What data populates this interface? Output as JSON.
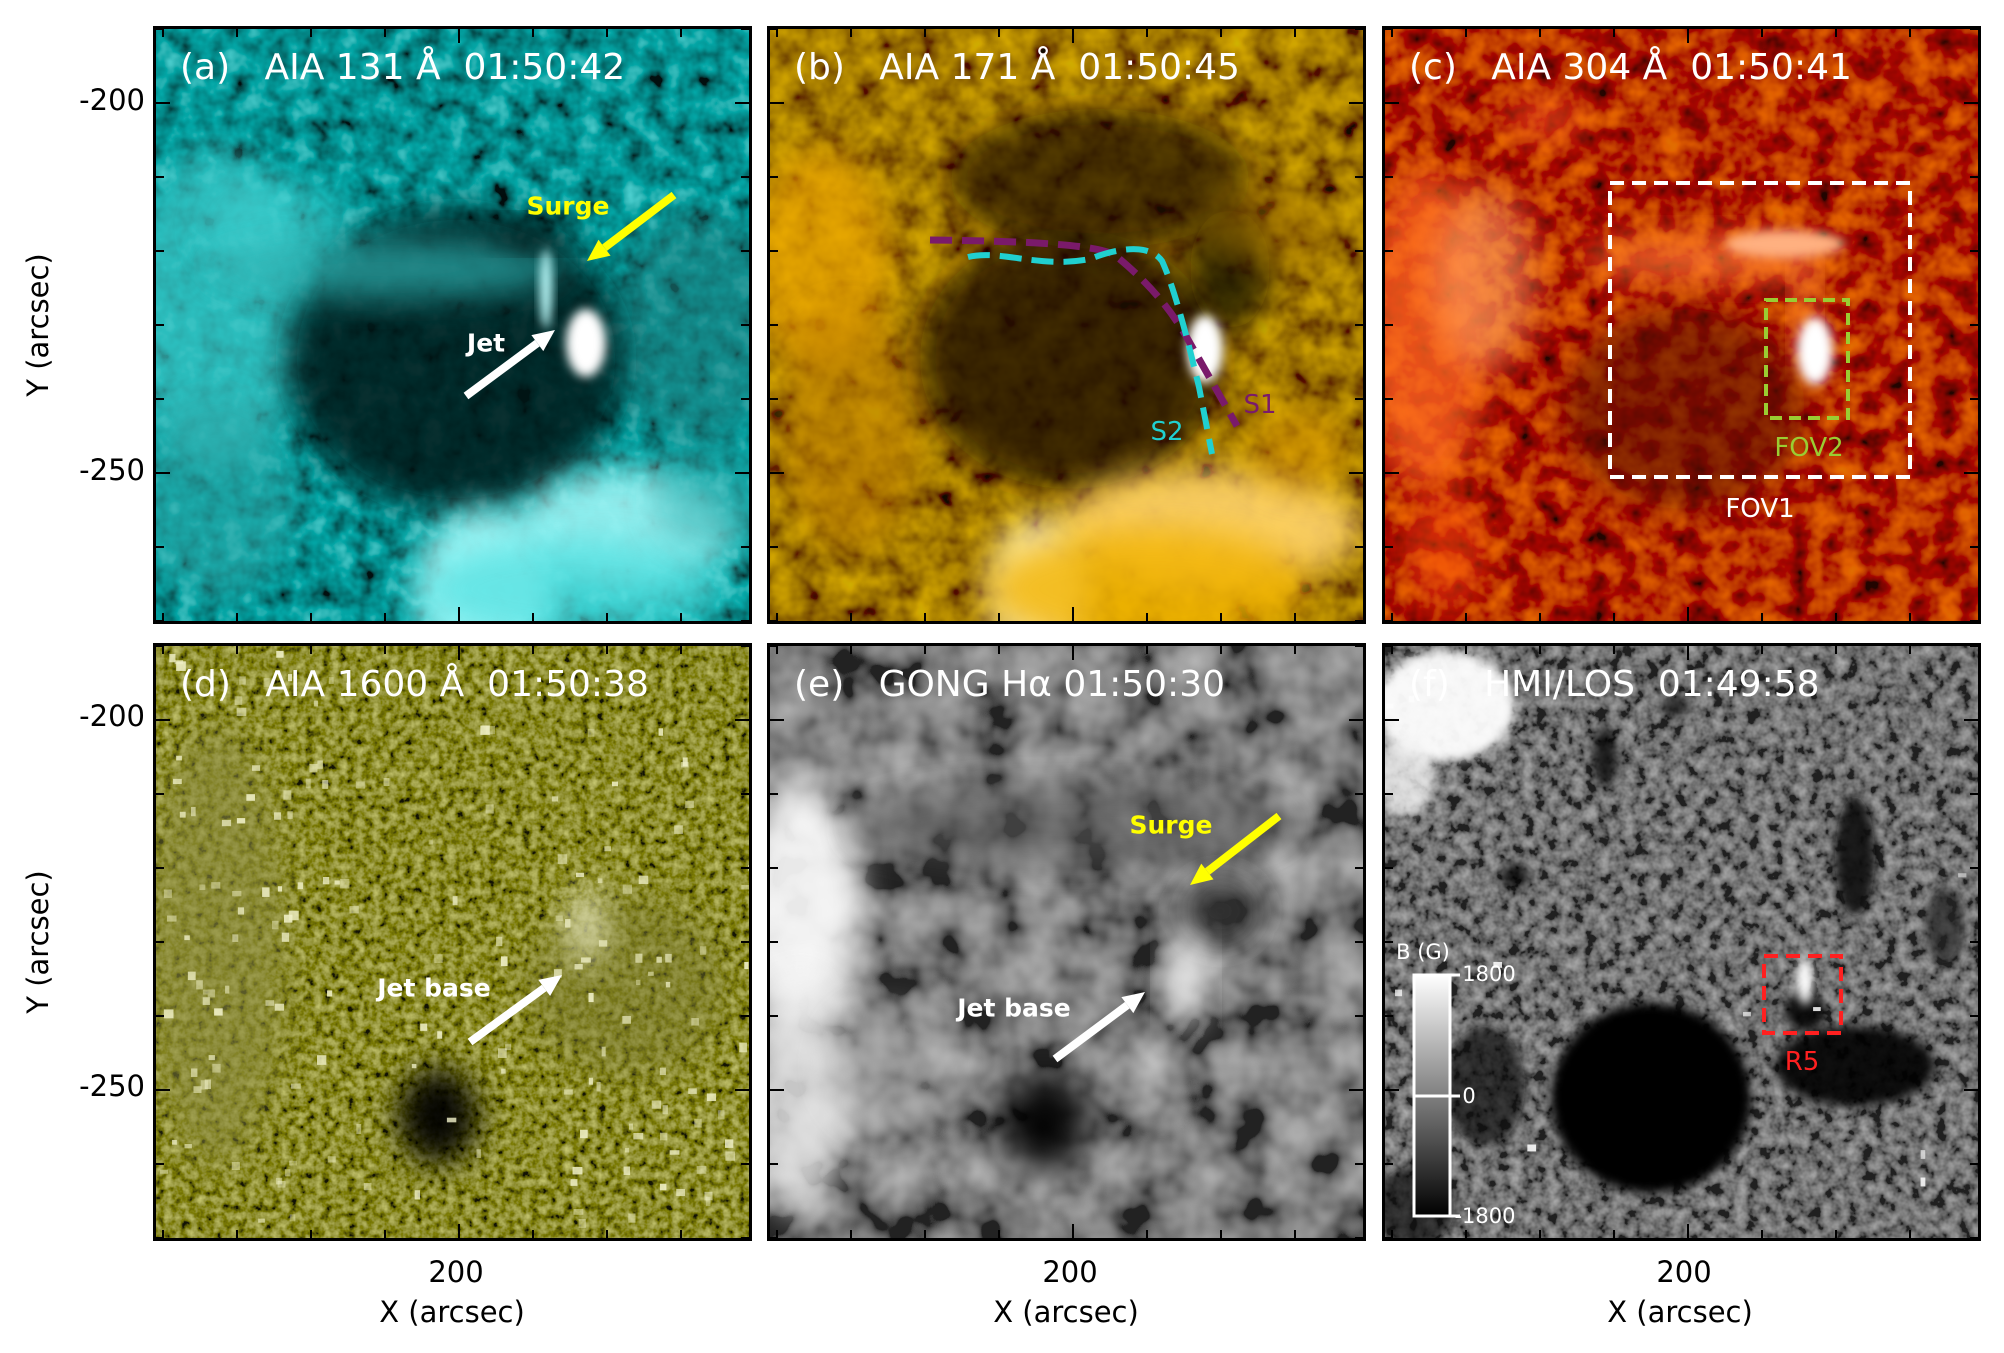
{
  "figure": {
    "axes": {
      "xlabel": "X (arcsec)",
      "ylabel": "Y (arcsec)",
      "yticks": [
        "-200",
        "-250"
      ],
      "xticks": [
        "200"
      ]
    },
    "panels": [
      {
        "id": "a",
        "title": "(a)   AIA 131 Å  01:50:42",
        "colormap": "cyan",
        "annotations": {
          "surge": "Surge",
          "jet": "Jet"
        },
        "colors": {
          "surge_arrow": "#ffff00",
          "jet_arrow": "#ffffff"
        }
      },
      {
        "id": "b",
        "title": "(b)   AIA 171 Å  01:50:45",
        "colormap": "gold",
        "annotations": {
          "s1": "S1",
          "s2": "S2"
        },
        "colors": {
          "s1": "#7a1a6a",
          "s2": "#20d0d0"
        }
      },
      {
        "id": "c",
        "title": "(c)   AIA 304 Å  01:50:41",
        "colormap": "red",
        "annotations": {
          "fov1": "FOV1",
          "fov2": "FOV2"
        },
        "colors": {
          "fov1": "#ffffff",
          "fov2": "#9acd32"
        }
      },
      {
        "id": "d",
        "title": "(d)   AIA 1600 Å  01:50:38",
        "colormap": "olive",
        "annotations": {
          "jet_base": "Jet base"
        },
        "colors": {
          "jet_arrow": "#ffffff"
        }
      },
      {
        "id": "e",
        "title": "(e)   GONG Hα 01:50:30",
        "colormap": "gray",
        "annotations": {
          "surge": "Surge",
          "jet_base": "Jet base"
        },
        "colors": {
          "surge_arrow": "#ffff00",
          "jet_arrow": "#ffffff"
        }
      },
      {
        "id": "f",
        "title": "(f)   HMI/LOS  01:49:58",
        "colormap": "gray",
        "annotations": {
          "r5": "R5"
        },
        "colors": {
          "r5": "#ff2020"
        },
        "colorbar": {
          "title": "B (G)",
          "max": "1800",
          "mid": "0",
          "min": "-1800"
        }
      }
    ]
  }
}
